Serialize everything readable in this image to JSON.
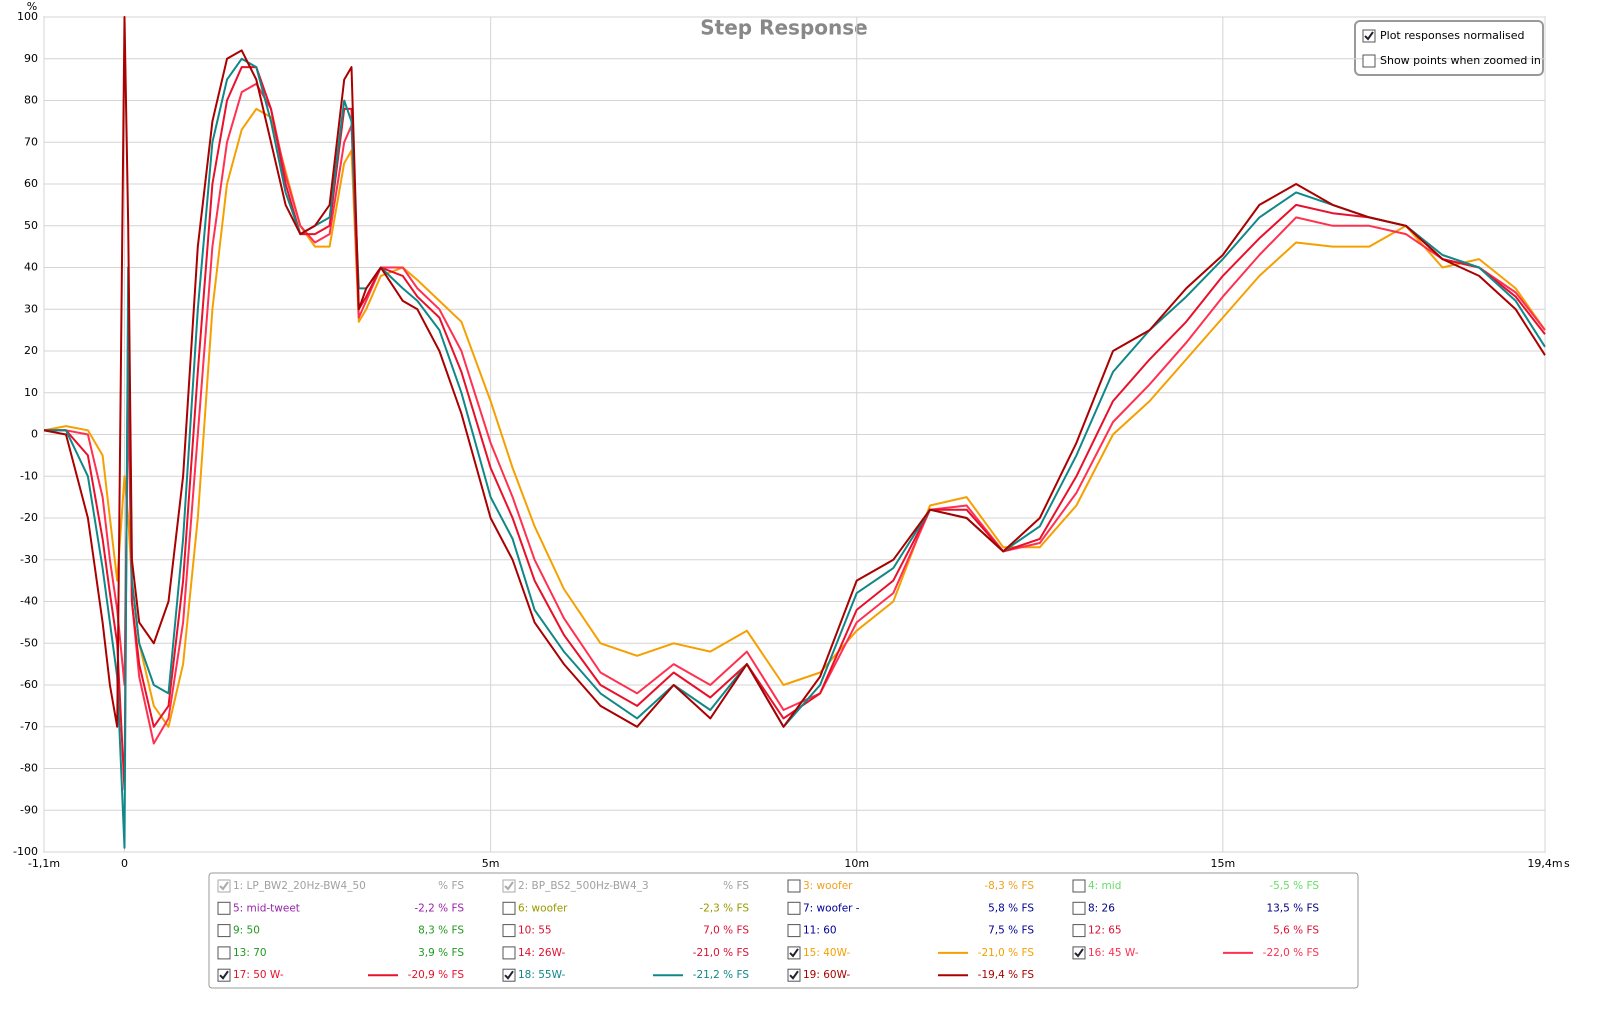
{
  "chart_data": {
    "type": "line",
    "title": "Step Response",
    "y_label": "%",
    "x_label": "s",
    "xlim": [
      -1.1,
      19.4
    ],
    "ylim": [
      -100,
      100
    ],
    "xticks": [
      {
        "value": -1.1,
        "label": "-1,1m"
      },
      0,
      {
        "value": 5,
        "label": "5m"
      },
      {
        "value": 10,
        "label": "10m"
      },
      {
        "value": 15,
        "label": "15m"
      },
      {
        "value": 19.4,
        "label": "19,4m"
      }
    ],
    "yticks": [
      -100,
      -90,
      -80,
      -70,
      -60,
      -50,
      -40,
      -30,
      -20,
      -10,
      0,
      10,
      20,
      30,
      40,
      50,
      60,
      70,
      80,
      90,
      100
    ],
    "grid": true,
    "options": [
      {
        "label": "Plot responses normalised",
        "checked": true
      },
      {
        "label": "Show points when zoomed in",
        "checked": false
      }
    ],
    "x": [
      -1.1,
      -0.8,
      -0.5,
      -0.3,
      -0.2,
      -0.1,
      0,
      0.05,
      0.1,
      0.2,
      0.4,
      0.6,
      0.8,
      1.0,
      1.2,
      1.4,
      1.6,
      1.8,
      2.0,
      2.2,
      2.4,
      2.6,
      2.8,
      3.0,
      3.1,
      3.2,
      3.3,
      3.5,
      3.8,
      4.0,
      4.3,
      4.6,
      5.0,
      5.3,
      5.6,
      6.0,
      6.5,
      7.0,
      7.5,
      8.0,
      8.5,
      9.0,
      9.5,
      10.0,
      10.5,
      11.0,
      11.5,
      12.0,
      12.5,
      13.0,
      13.5,
      14.0,
      14.5,
      15.0,
      15.5,
      16.0,
      16.5,
      17.0,
      17.5,
      18.0,
      18.5,
      19.0,
      19.4
    ],
    "series": [
      {
        "name": "1: LP_BW2_20Hz-BW4_50",
        "readout": "% FS",
        "color": "#a0a0a0",
        "checked": true,
        "enabled": false
      },
      {
        "name": "2: BP_BS2_500Hz-BW4_3",
        "readout": "% FS",
        "color": "#a0a0a0",
        "checked": true,
        "enabled": false
      },
      {
        "name": "3: woofer",
        "readout": "-8,3 % FS",
        "color": "#f0a020",
        "checked": false
      },
      {
        "name": "4: mid",
        "readout": "-5,5 % FS",
        "color": "#66dd66",
        "checked": false
      },
      {
        "name": "5: mid-tweet",
        "readout": "-2,2 % FS",
        "color": "#9922aa",
        "checked": false
      },
      {
        "name": "6: woofer",
        "readout": "-2,3 % FS",
        "color": "#999900",
        "checked": false
      },
      {
        "name": "7: woofer -",
        "readout": "5,8 % FS",
        "color": "#000099",
        "checked": false
      },
      {
        "name": "8: 26",
        "readout": "13,5 % FS",
        "color": "#000080",
        "checked": false
      },
      {
        "name": "9: 50",
        "readout": "8,3 % FS",
        "color": "#229922",
        "checked": false
      },
      {
        "name": "10: 55",
        "readout": "7,0 % FS",
        "color": "#dd1133",
        "checked": false
      },
      {
        "name": "11: 60",
        "readout": "7,5 % FS",
        "color": "#000099",
        "checked": false
      },
      {
        "name": "12: 65",
        "readout": "5,6 % FS",
        "color": "#dd1133",
        "checked": false
      },
      {
        "name": "13: 70",
        "readout": "3,9 % FS",
        "color": "#229922",
        "checked": false
      },
      {
        "name": "14: 26W-",
        "readout": "-21,0 % FS",
        "color": "#dd1133",
        "checked": false
      },
      {
        "name": "15: 40W-",
        "readout": "-21,0 % FS",
        "color": "#f5a000",
        "checked": true,
        "values": [
          1,
          2,
          1,
          -5,
          -20,
          -35,
          -10,
          -20,
          -35,
          -50,
          -65,
          -70,
          -55,
          -20,
          30,
          60,
          73,
          78,
          76,
          63,
          50,
          45,
          45,
          65,
          68,
          27,
          30,
          38,
          40,
          37,
          32,
          27,
          8,
          -8,
          -22,
          -37,
          -50,
          -53,
          -50,
          -52,
          -47,
          -60,
          -57,
          -47,
          -40,
          -17,
          -15,
          -27,
          -27,
          -17,
          0,
          8,
          18,
          28,
          38,
          46,
          45,
          45,
          50,
          40,
          42,
          35,
          25
        ]
      },
      {
        "name": "16: 45 W-",
        "readout": "-22,0 % FS",
        "color": "#ff3050",
        "checked": true,
        "values": [
          1,
          1,
          0,
          -15,
          -30,
          -42,
          -60,
          10,
          -40,
          -58,
          -74,
          -68,
          -45,
          0,
          45,
          70,
          82,
          84,
          78,
          62,
          50,
          46,
          48,
          70,
          74,
          28,
          32,
          40,
          40,
          35,
          30,
          20,
          -2,
          -15,
          -30,
          -44,
          -57,
          -62,
          -55,
          -60,
          -52,
          -66,
          -62,
          -45,
          -38,
          -18,
          -17,
          -28,
          -26,
          -14,
          3,
          12,
          22,
          33,
          43,
          52,
          50,
          50,
          48,
          42,
          40,
          34,
          25
        ]
      },
      {
        "name": "17: 50 W-",
        "readout": "-20,9 % FS",
        "color": "#e8102a",
        "checked": true,
        "values": [
          1,
          1,
          -5,
          -25,
          -38,
          -50,
          -85,
          30,
          -40,
          -55,
          -70,
          -65,
          -35,
          15,
          60,
          80,
          88,
          88,
          78,
          60,
          48,
          48,
          50,
          78,
          78,
          30,
          33,
          40,
          38,
          33,
          28,
          15,
          -8,
          -20,
          -35,
          -48,
          -60,
          -65,
          -57,
          -63,
          -55,
          -68,
          -62,
          -42,
          -35,
          -18,
          -18,
          -28,
          -25,
          -10,
          8,
          18,
          27,
          38,
          47,
          55,
          53,
          52,
          50,
          42,
          40,
          33,
          24
        ]
      },
      {
        "name": "18: 55W-",
        "readout": "-21,2 % FS",
        "color": "#118888",
        "checked": true,
        "values": [
          1,
          1,
          -10,
          -32,
          -45,
          -58,
          -99,
          40,
          -35,
          -50,
          -60,
          -62,
          -25,
          30,
          70,
          85,
          90,
          88,
          75,
          58,
          48,
          50,
          52,
          80,
          75,
          35,
          35,
          40,
          35,
          32,
          25,
          10,
          -15,
          -25,
          -42,
          -52,
          -62,
          -68,
          -60,
          -66,
          -55,
          -70,
          -60,
          -38,
          -32,
          -18,
          -20,
          -28,
          -22,
          -5,
          15,
          25,
          33,
          42,
          52,
          58,
          55,
          52,
          50,
          43,
          40,
          32,
          21
        ]
      },
      {
        "name": "19: 60W-",
        "readout": "-19,4 % FS",
        "color": "#aa0000",
        "checked": true,
        "values": [
          1,
          0,
          -20,
          -45,
          -60,
          -70,
          100,
          50,
          -30,
          -45,
          -50,
          -40,
          -10,
          45,
          75,
          90,
          92,
          85,
          70,
          55,
          48,
          50,
          55,
          85,
          88,
          30,
          35,
          40,
          32,
          30,
          20,
          5,
          -20,
          -30,
          -45,
          -55,
          -65,
          -70,
          -60,
          -68,
          -55,
          -70,
          -58,
          -35,
          -30,
          -18,
          -20,
          -28,
          -20,
          -2,
          20,
          25,
          35,
          43,
          55,
          60,
          55,
          52,
          50,
          42,
          38,
          30,
          19
        ]
      }
    ]
  }
}
